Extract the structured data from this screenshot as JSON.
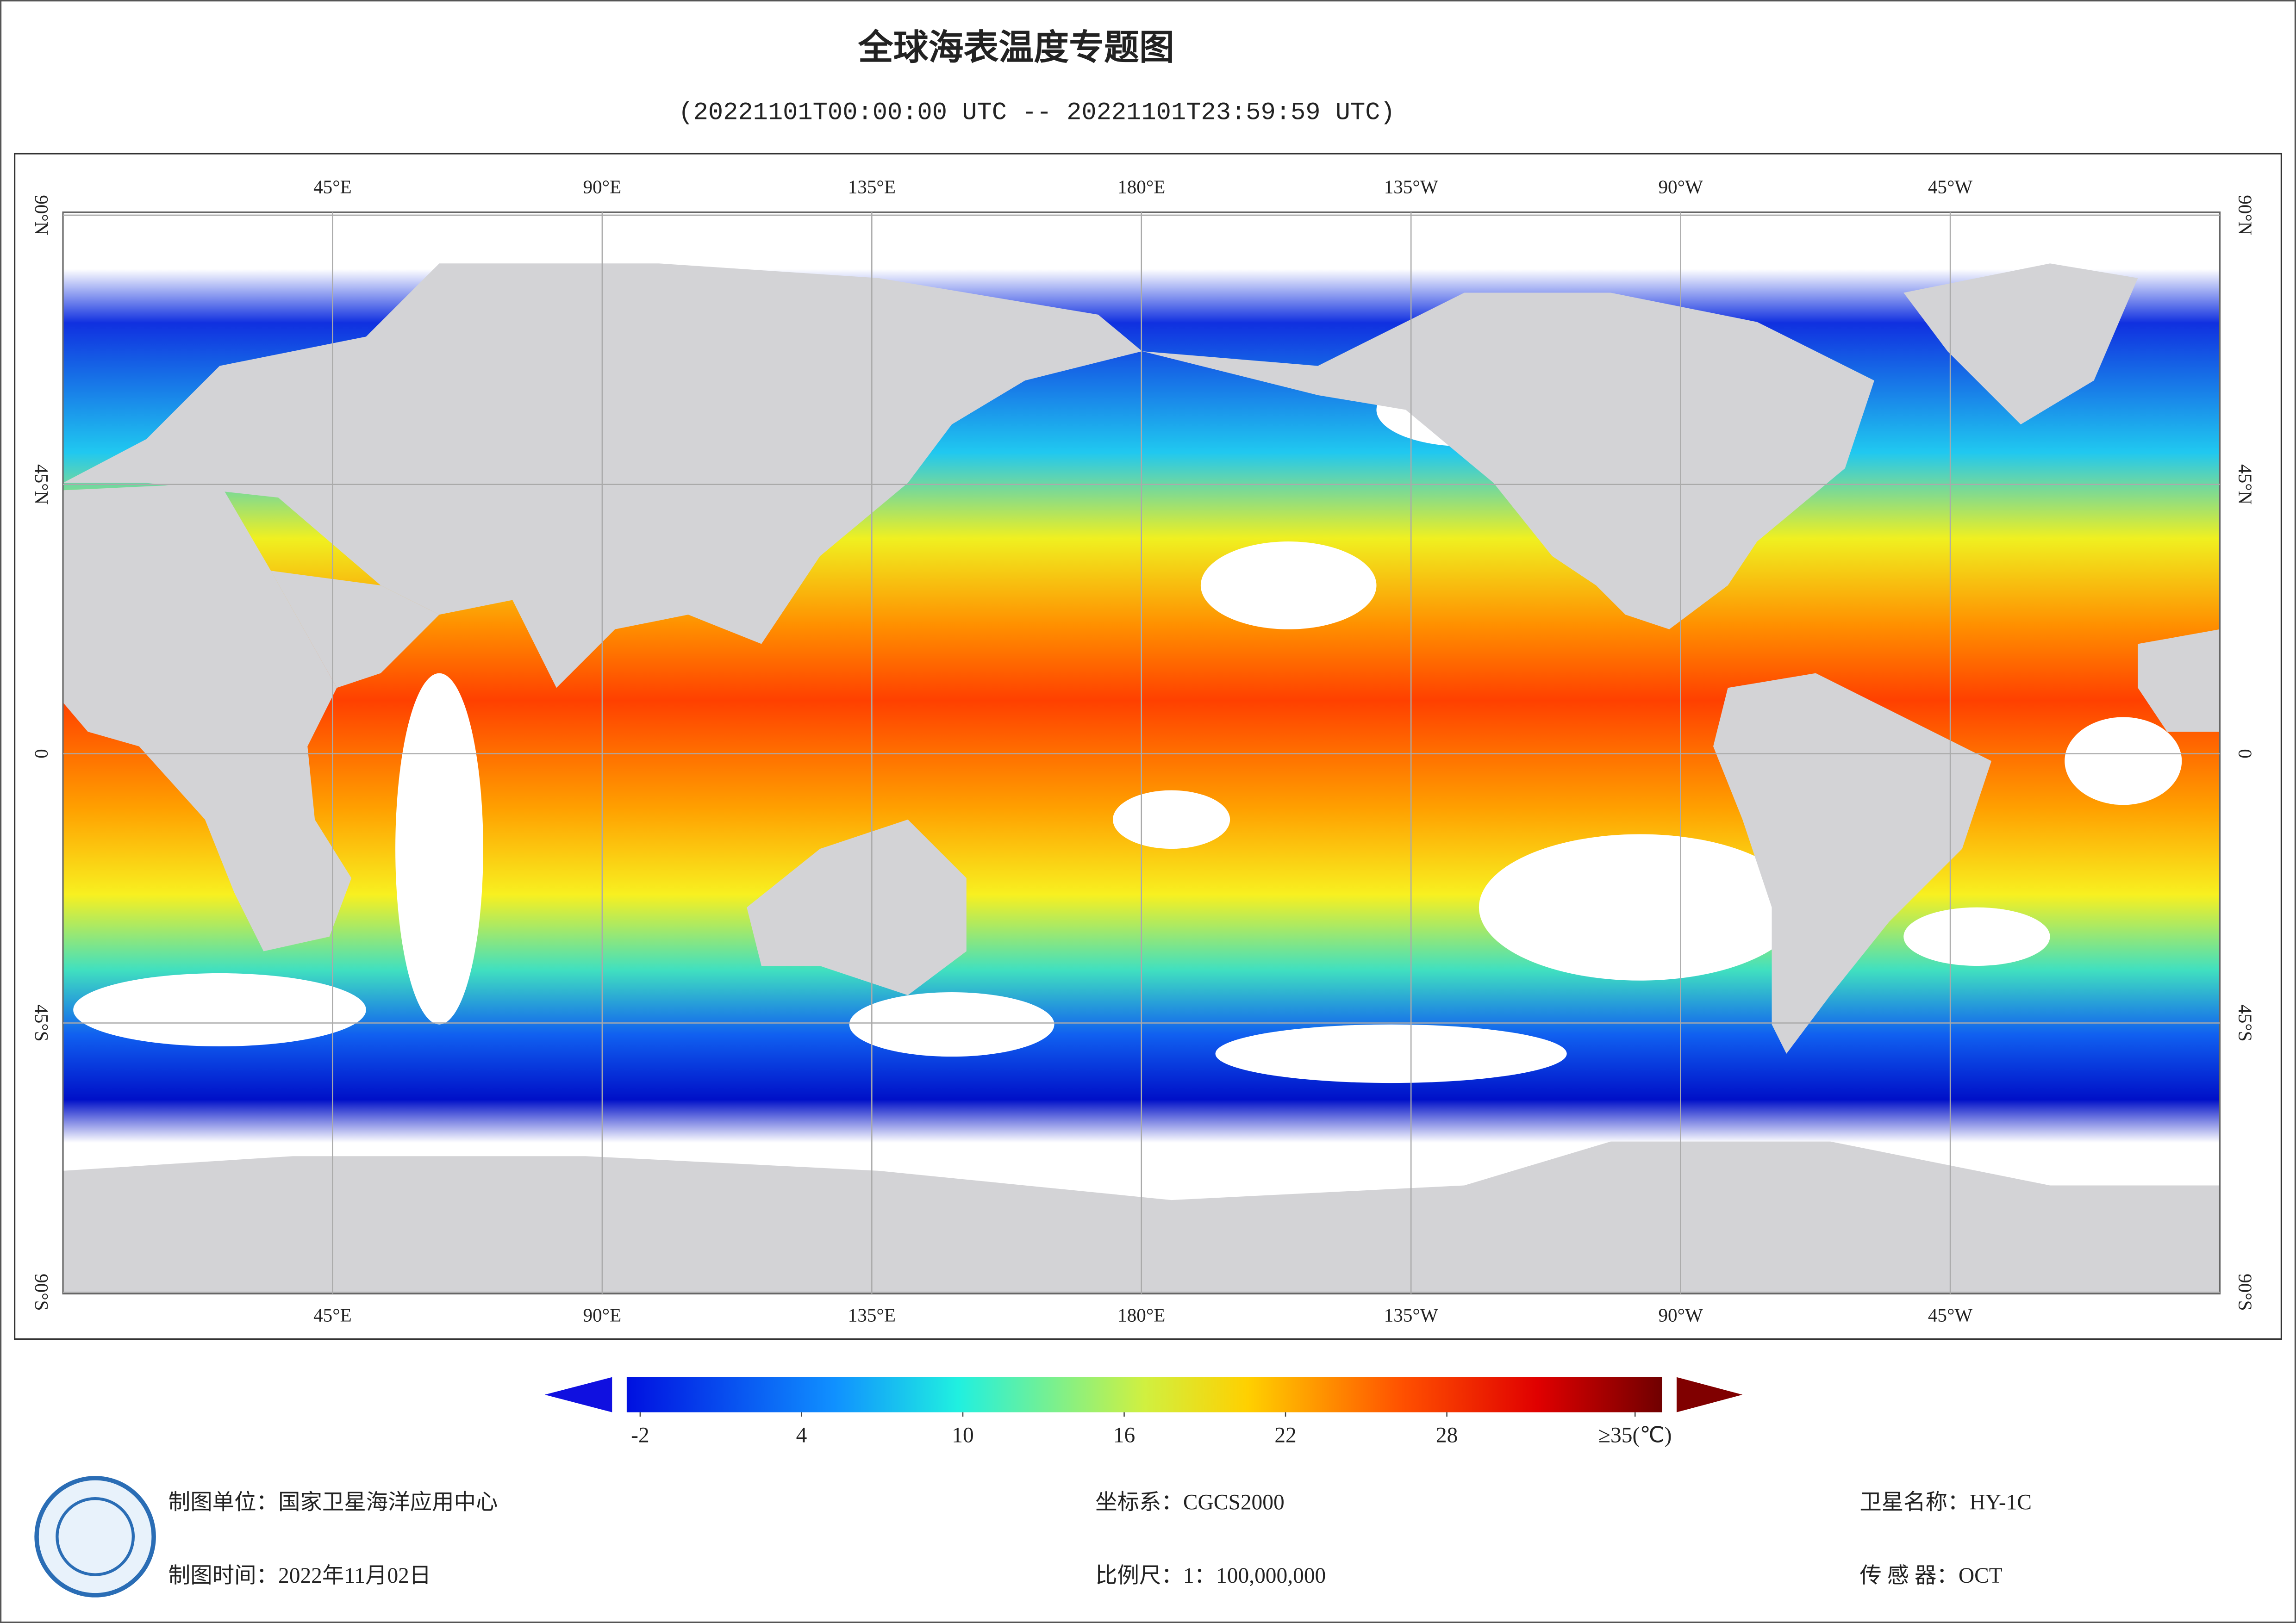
{
  "header": {
    "title": "全球海表温度专题图",
    "subtitle": "(20221101T00:00:00 UTC -- 20221101T23:59:59 UTC)"
  },
  "map": {
    "lonlim": [
      0,
      360
    ],
    "latlim": [
      -90,
      90
    ],
    "lonticks": [
      {
        "value": 45,
        "label": "45°E"
      },
      {
        "value": 90,
        "label": "90°E"
      },
      {
        "value": 135,
        "label": "135°E"
      },
      {
        "value": 180,
        "label": "180°E"
      },
      {
        "value": 225,
        "label": "135°W"
      },
      {
        "value": 270,
        "label": "90°W"
      },
      {
        "value": 315,
        "label": "45°W"
      }
    ],
    "latticks": [
      {
        "value": 90,
        "label": "90°N"
      },
      {
        "value": 45,
        "label": "45°N"
      },
      0,
      {
        "value": -45,
        "label": "45°S"
      },
      {
        "value": -90,
        "label": "90°S"
      }
    ]
  },
  "colorbar": {
    "range": [
      -2.5,
      36
    ],
    "ticks": [
      -2,
      4,
      10,
      16,
      22,
      28,
      {
        "value": 35,
        "label": "≥35(℃)"
      }
    ]
  },
  "footer": {
    "unit": "制图单位：国家卫星海洋应用中心",
    "date": "制图时间：2022年11月02日",
    "crs": "坐标系：CGCS2000",
    "scale": "比例尺：1：100,000,000",
    "satellite": "卫星名称：HY-1C",
    "sensor": "传 感 器：OCT"
  }
}
